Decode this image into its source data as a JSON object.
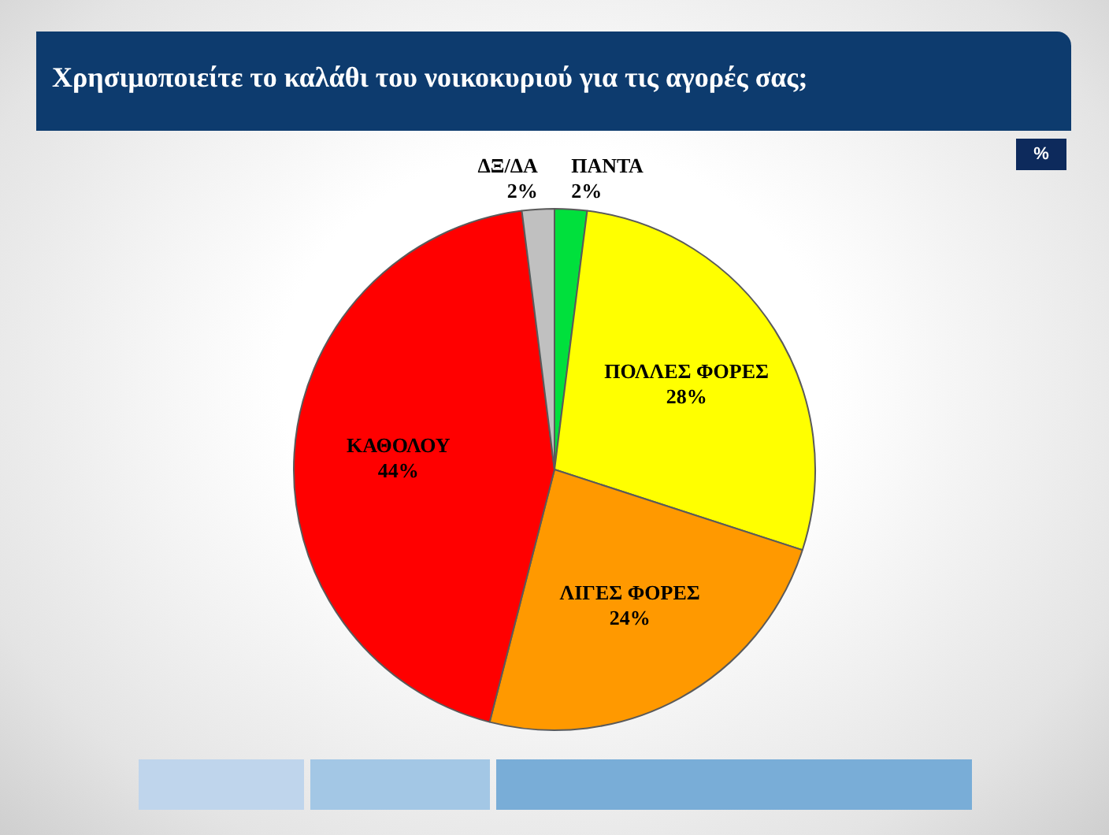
{
  "chart_data": {
    "type": "pie",
    "title": "Χρησιμοποιείτε το καλάθι του νοικοκυριού για τις αγορές σας;",
    "annotations": [
      "%"
    ],
    "categories": [
      "ΠΑΝΤΑ",
      "ΠΟΛΛΕΣ ΦΟΡΕΣ",
      "ΛΙΓΕΣ ΦΟΡΕΣ",
      "ΚΑΘΟΛΟΥ",
      "ΔΞ/ΔΑ"
    ],
    "values": [
      2,
      28,
      24,
      44,
      2
    ],
    "value_labels": [
      "2%",
      "28%",
      "24%",
      "44%",
      "2%"
    ],
    "colors": [
      "#00e03c",
      "#ffff00",
      "#ff9900",
      "#ff0000",
      "#c0c0c0"
    ]
  }
}
